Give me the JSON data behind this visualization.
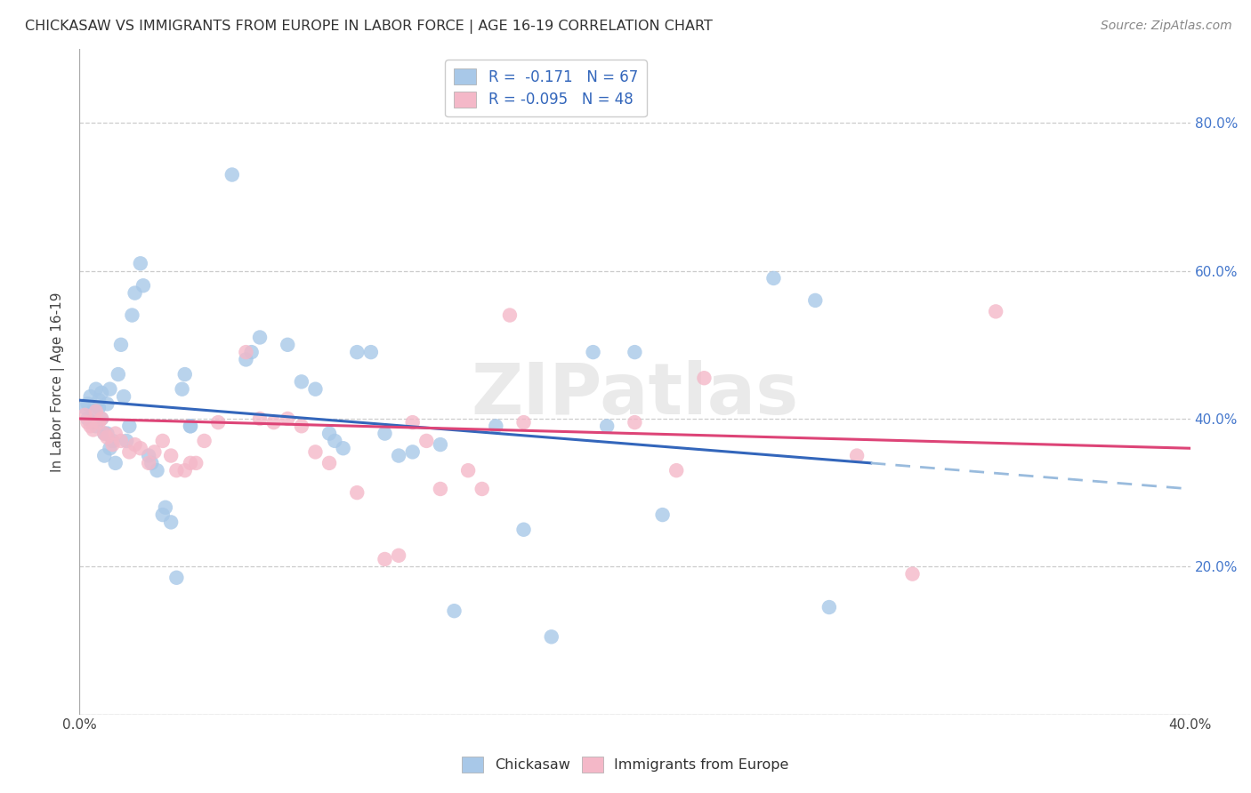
{
  "title": "CHICKASAW VS IMMIGRANTS FROM EUROPE IN LABOR FORCE | AGE 16-19 CORRELATION CHART",
  "source": "Source: ZipAtlas.com",
  "ylabel": "In Labor Force | Age 16-19",
  "xlim": [
    0.0,
    0.4
  ],
  "ylim": [
    0.0,
    0.9
  ],
  "xticks": [
    0.0,
    0.05,
    0.1,
    0.15,
    0.2,
    0.25,
    0.3,
    0.35,
    0.4
  ],
  "yticks": [
    0.0,
    0.2,
    0.4,
    0.6,
    0.8
  ],
  "chickasaw_color": "#a8c8e8",
  "europe_color": "#f4b8c8",
  "trendline_chickasaw_color": "#3366bb",
  "trendline_europe_color": "#dd4477",
  "trendline_chickasaw_dashed_color": "#99bbdd",
  "watermark": "ZIPatlas",
  "watermark_color": "#dddddd",
  "chickasaw_points": [
    [
      0.002,
      0.415
    ],
    [
      0.003,
      0.4
    ],
    [
      0.003,
      0.42
    ],
    [
      0.004,
      0.43
    ],
    [
      0.005,
      0.395
    ],
    [
      0.005,
      0.41
    ],
    [
      0.006,
      0.44
    ],
    [
      0.006,
      0.39
    ],
    [
      0.007,
      0.415
    ],
    [
      0.007,
      0.425
    ],
    [
      0.008,
      0.4
    ],
    [
      0.008,
      0.435
    ],
    [
      0.009,
      0.38
    ],
    [
      0.009,
      0.35
    ],
    [
      0.01,
      0.42
    ],
    [
      0.01,
      0.38
    ],
    [
      0.011,
      0.36
    ],
    [
      0.011,
      0.44
    ],
    [
      0.012,
      0.37
    ],
    [
      0.013,
      0.34
    ],
    [
      0.014,
      0.46
    ],
    [
      0.015,
      0.5
    ],
    [
      0.016,
      0.43
    ],
    [
      0.017,
      0.37
    ],
    [
      0.018,
      0.39
    ],
    [
      0.019,
      0.54
    ],
    [
      0.02,
      0.57
    ],
    [
      0.022,
      0.61
    ],
    [
      0.023,
      0.58
    ],
    [
      0.025,
      0.35
    ],
    [
      0.026,
      0.34
    ],
    [
      0.028,
      0.33
    ],
    [
      0.03,
      0.27
    ],
    [
      0.031,
      0.28
    ],
    [
      0.033,
      0.26
    ],
    [
      0.035,
      0.185
    ],
    [
      0.037,
      0.44
    ],
    [
      0.038,
      0.46
    ],
    [
      0.04,
      0.39
    ],
    [
      0.04,
      0.39
    ],
    [
      0.055,
      0.73
    ],
    [
      0.06,
      0.48
    ],
    [
      0.062,
      0.49
    ],
    [
      0.065,
      0.51
    ],
    [
      0.075,
      0.5
    ],
    [
      0.08,
      0.45
    ],
    [
      0.085,
      0.44
    ],
    [
      0.09,
      0.38
    ],
    [
      0.092,
      0.37
    ],
    [
      0.095,
      0.36
    ],
    [
      0.1,
      0.49
    ],
    [
      0.105,
      0.49
    ],
    [
      0.11,
      0.38
    ],
    [
      0.115,
      0.35
    ],
    [
      0.12,
      0.355
    ],
    [
      0.13,
      0.365
    ],
    [
      0.135,
      0.14
    ],
    [
      0.15,
      0.39
    ],
    [
      0.16,
      0.25
    ],
    [
      0.17,
      0.105
    ],
    [
      0.185,
      0.49
    ],
    [
      0.19,
      0.39
    ],
    [
      0.2,
      0.49
    ],
    [
      0.21,
      0.27
    ],
    [
      0.25,
      0.59
    ],
    [
      0.265,
      0.56
    ],
    [
      0.27,
      0.145
    ]
  ],
  "europe_points": [
    [
      0.002,
      0.405
    ],
    [
      0.003,
      0.395
    ],
    [
      0.004,
      0.39
    ],
    [
      0.005,
      0.385
    ],
    [
      0.006,
      0.41
    ],
    [
      0.007,
      0.395
    ],
    [
      0.008,
      0.4
    ],
    [
      0.009,
      0.38
    ],
    [
      0.01,
      0.375
    ],
    [
      0.012,
      0.365
    ],
    [
      0.013,
      0.38
    ],
    [
      0.015,
      0.37
    ],
    [
      0.018,
      0.355
    ],
    [
      0.02,
      0.365
    ],
    [
      0.022,
      0.36
    ],
    [
      0.025,
      0.34
    ],
    [
      0.027,
      0.355
    ],
    [
      0.03,
      0.37
    ],
    [
      0.033,
      0.35
    ],
    [
      0.035,
      0.33
    ],
    [
      0.038,
      0.33
    ],
    [
      0.04,
      0.34
    ],
    [
      0.042,
      0.34
    ],
    [
      0.045,
      0.37
    ],
    [
      0.05,
      0.395
    ],
    [
      0.06,
      0.49
    ],
    [
      0.065,
      0.4
    ],
    [
      0.07,
      0.395
    ],
    [
      0.075,
      0.4
    ],
    [
      0.08,
      0.39
    ],
    [
      0.085,
      0.355
    ],
    [
      0.09,
      0.34
    ],
    [
      0.1,
      0.3
    ],
    [
      0.11,
      0.21
    ],
    [
      0.115,
      0.215
    ],
    [
      0.12,
      0.395
    ],
    [
      0.125,
      0.37
    ],
    [
      0.13,
      0.305
    ],
    [
      0.14,
      0.33
    ],
    [
      0.145,
      0.305
    ],
    [
      0.155,
      0.54
    ],
    [
      0.16,
      0.395
    ],
    [
      0.2,
      0.395
    ],
    [
      0.215,
      0.33
    ],
    [
      0.225,
      0.455
    ],
    [
      0.28,
      0.35
    ],
    [
      0.3,
      0.19
    ],
    [
      0.33,
      0.545
    ]
  ],
  "trendline_blue_x0": 0.0,
  "trendline_blue_y0": 0.425,
  "trendline_blue_x1": 0.285,
  "trendline_blue_y1": 0.34,
  "trendline_blue_dash_x0": 0.285,
  "trendline_blue_dash_y0": 0.34,
  "trendline_blue_dash_x1": 0.4,
  "trendline_blue_dash_y1": 0.305,
  "trendline_pink_x0": 0.0,
  "trendline_pink_y0": 0.4,
  "trendline_pink_x1": 0.4,
  "trendline_pink_y1": 0.36,
  "legend1_label": "R =  -0.171   N = 67",
  "legend2_label": "R = -0.095   N = 48",
  "bottom_legend1": "Chickasaw",
  "bottom_legend2": "Immigrants from Europe"
}
